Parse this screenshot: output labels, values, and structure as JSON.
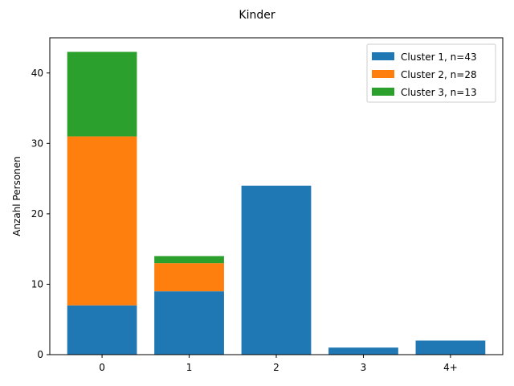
{
  "chart_data": {
    "type": "bar",
    "stacked": true,
    "title": "Kinder",
    "xlabel": "",
    "ylabel": "Anzahl Personen",
    "categories": [
      "0",
      "1",
      "2",
      "3",
      "4+"
    ],
    "series": [
      {
        "name": "Cluster 1, n=43",
        "color": "#1f77b4",
        "values": [
          7,
          9,
          24,
          1,
          2
        ]
      },
      {
        "name": "Cluster 2, n=28",
        "color": "#ff7f0e",
        "values": [
          24,
          4,
          0,
          0,
          0
        ]
      },
      {
        "name": "Cluster 3, n=13",
        "color": "#2ca02c",
        "values": [
          12,
          1,
          0,
          0,
          0
        ]
      }
    ],
    "ylim": [
      0,
      45
    ],
    "yticks": [
      0,
      10,
      20,
      30,
      40
    ],
    "grid": false,
    "legend_position": "top-right"
  }
}
